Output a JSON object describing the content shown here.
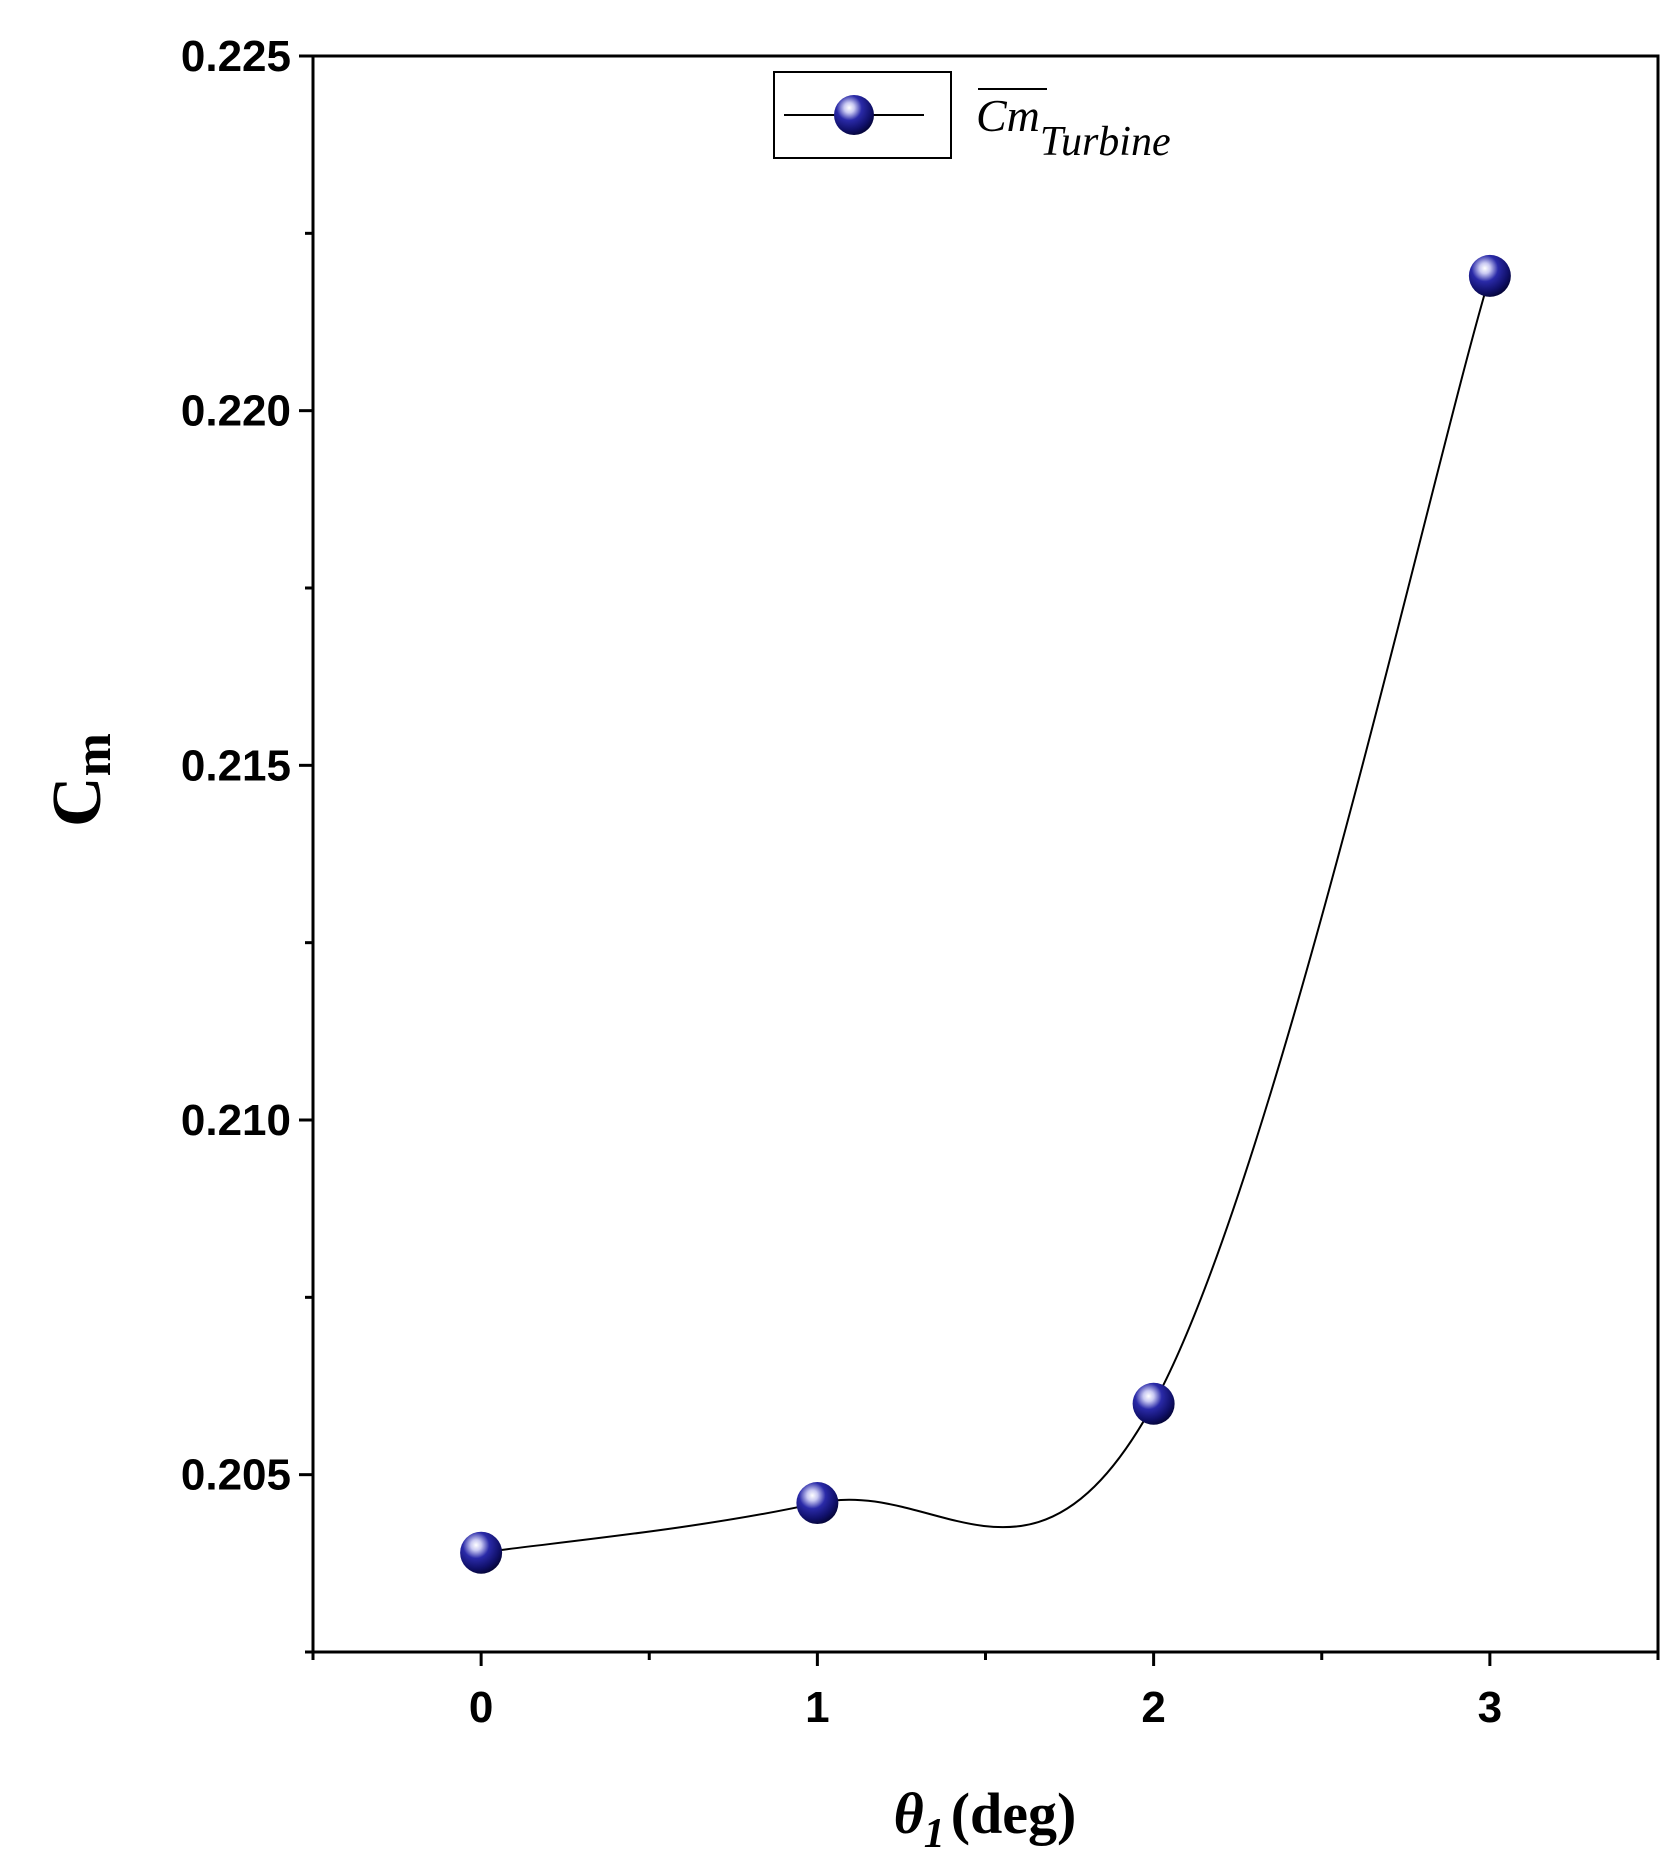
{
  "chart_data": {
    "type": "line",
    "title": "",
    "xlabel_symbol": "θ",
    "xlabel_subscript": "1",
    "xlabel_unit": "(deg)",
    "ylabel_main": "C",
    "ylabel_subscript": "m",
    "x_ticks": [
      "0",
      "1",
      "2",
      "3"
    ],
    "y_ticks": [
      "0.205",
      "0.210",
      "0.215",
      "0.220",
      "0.225"
    ],
    "xlim": [
      -0.5,
      3.5
    ],
    "ylim": [
      0.2025,
      0.225
    ],
    "grid": false,
    "legend_position": "top-center",
    "series": [
      {
        "name": "Cm",
        "name_subscript": "Turbine",
        "name_overline": true,
        "x": [
          0,
          1,
          2,
          3
        ],
        "values": [
          0.2039,
          0.2046,
          0.206,
          0.2219
        ],
        "marker_color": "#1a1a8c",
        "line_color": "#000000"
      }
    ]
  }
}
